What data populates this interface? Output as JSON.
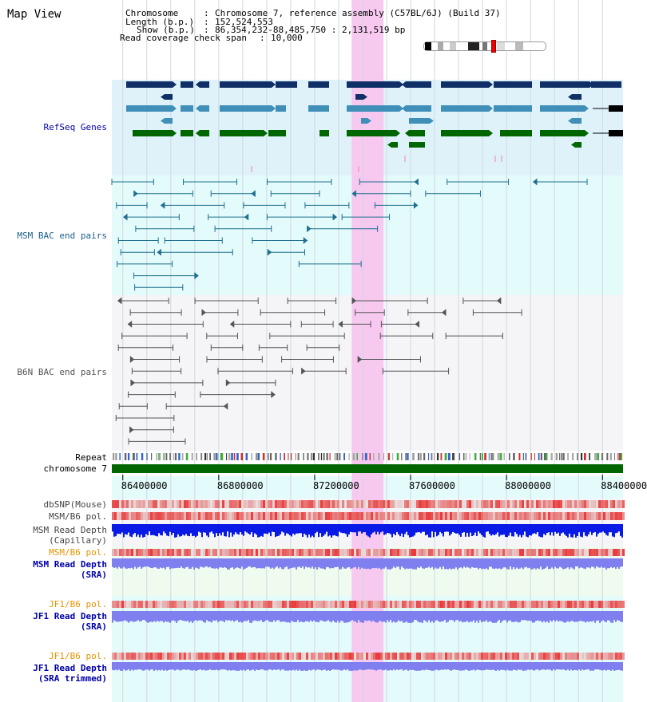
{
  "title": "Map View",
  "info": {
    "chromosome_label": "Chromosome",
    "chromosome_value": "Chromosome 7, reference assembly (C57BL/6J) (Build 37)",
    "length_label": "Length (b.p.)",
    "length_value": "152,524,553",
    "show_label": "Show (b.p.)",
    "show_value": "86,354,232-88,485,750 : 2,131,519 bp",
    "span_label": "Read coverage check span",
    "span_value": "10,000"
  },
  "tracks": {
    "refseq": "RefSeq Genes",
    "msm_bac": "MSM BAC end pairs",
    "b6n_bac": "B6N BAC end pairs",
    "repeat": "Repeat",
    "chromosome": "chromosome 7",
    "dbsnp": "dbSNP(Mouse)",
    "msm_b6_pol": "MSM/B6 pol.",
    "msm_depth_cap_1": "MSM Read Depth",
    "msm_depth_cap_2": "(Capillary)",
    "msm_b6_pol_sra": "MSM/B6 pol.",
    "msm_depth_sra_1": "MSM Read Depth",
    "msm_depth_sra_2": "(SRA)",
    "jf1_b6_pol": "JF1/B6 pol.",
    "jf1_depth_sra_1": "JF1 Read Depth",
    "jf1_depth_sra_2": "(SRA)",
    "jf1_b6_pol_2": "JF1/B6 pol.",
    "jf1_depth_trim_1": "JF1 Read Depth",
    "jf1_depth_trim_2": "(SRA trimmed)"
  },
  "axis": {
    "start": 86354232,
    "end": 88485750,
    "ticks": [
      "86400000",
      "86800000",
      "87200000",
      "87600000",
      "88000000",
      "88400000"
    ]
  },
  "highlight": {
    "start": 87354232,
    "end": 87487000
  },
  "colors": {
    "refseq_dark": "#0f2f66",
    "refseq_mid": "#3f8fb8",
    "refseq_green": "#006600",
    "msm_line": "#1f6f8f",
    "b6n_line": "#555555",
    "highlight": "#f7c8f0",
    "depth_blue": "#0a1ae6",
    "depth_violet": "#7f7ff0",
    "pol_red": "#e83a3a",
    "chrom_green": "#006600",
    "label_blue": "#0000aa",
    "label_msm": "#1a5f8a",
    "label_orange": "#e69400"
  }
}
